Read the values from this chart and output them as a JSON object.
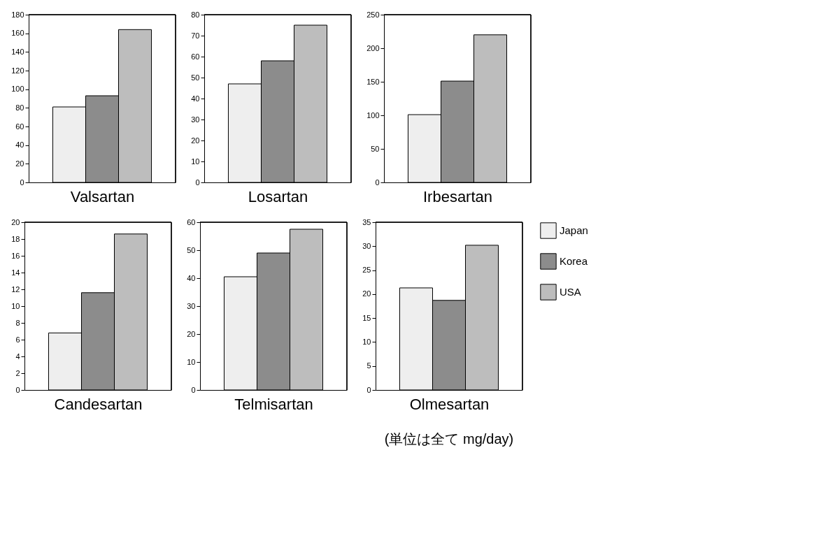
{
  "chart_data": [
    {
      "type": "bar",
      "xlabel": "Valsartan",
      "categories": [
        null
      ],
      "tick_labels": "y",
      "ylim": [
        0,
        180
      ],
      "yticks": [
        0,
        20,
        40,
        60,
        80,
        100,
        120,
        140,
        160,
        180
      ],
      "legend": false,
      "series": [
        {
          "color": "#eeeeee",
          "values": [
            81
          ]
        },
        {
          "color": "#8c8c8c",
          "values": [
            93
          ]
        },
        {
          "color": "#bdbdbd",
          "values": [
            164
          ]
        }
      ]
    },
    {
      "type": "bar",
      "xlabel": "Losartan",
      "categories": [
        null
      ],
      "tick_labels": "y",
      "ylim": [
        0,
        80
      ],
      "yticks": [
        0,
        10,
        20,
        30,
        40,
        50,
        60,
        70,
        80
      ],
      "legend": false,
      "series": [
        {
          "color": "#eeeeee",
          "values": [
            47
          ]
        },
        {
          "color": "#8c8c8c",
          "values": [
            58
          ]
        },
        {
          "color": "#bdbdbd",
          "values": [
            75
          ]
        }
      ]
    },
    {
      "type": "bar",
      "xlabel": "Irbesartan",
      "categories": [
        null
      ],
      "tick_labels": "y",
      "ylim": [
        0,
        250
      ],
      "yticks": [
        0,
        50,
        100,
        150,
        200,
        250
      ],
      "legend": false,
      "series": [
        {
          "color": "#eeeeee",
          "values": [
            101
          ]
        },
        {
          "color": "#8c8c8c",
          "values": [
            151
          ]
        },
        {
          "color": "#bdbdbd",
          "values": [
            220
          ]
        }
      ]
    },
    {
      "type": "bar",
      "xlabel": "Candesartan",
      "categories": [
        null
      ],
      "tick_labels": "y",
      "ylim": [
        0,
        20
      ],
      "yticks": [
        0,
        2,
        4,
        6,
        8,
        10,
        12,
        14,
        16,
        18,
        20
      ],
      "legend": false,
      "series": [
        {
          "color": "#eeeeee",
          "values": [
            6.8
          ]
        },
        {
          "color": "#8c8c8c",
          "values": [
            11.6
          ]
        },
        {
          "color": "#bdbdbd",
          "values": [
            18.6
          ]
        }
      ]
    },
    {
      "type": "bar",
      "xlabel": "Telmisartan",
      "categories": [
        null
      ],
      "tick_labels": "y",
      "ylim": [
        0,
        60
      ],
      "yticks": [
        0,
        10,
        20,
        30,
        40,
        50,
        60
      ],
      "legend": false,
      "series": [
        {
          "color": "#eeeeee",
          "values": [
            40.5
          ]
        },
        {
          "color": "#8c8c8c",
          "values": [
            49
          ]
        },
        {
          "color": "#bdbdbd",
          "values": [
            57.5
          ]
        }
      ]
    },
    {
      "type": "bar",
      "xlabel": "Olmesartan",
      "categories": [
        null
      ],
      "tick_labels": "y",
      "ylim": [
        0,
        35
      ],
      "yticks": [
        0,
        5,
        10,
        15,
        20,
        25,
        30,
        35
      ],
      "legend": "right",
      "annotations": [
        "(単位は全て mg/day)"
      ],
      "series": [
        {
          "name": "Japan",
          "color": "#eeeeee",
          "values": [
            21.3
          ]
        },
        {
          "name": "Korea",
          "color": "#8c8c8c",
          "values": [
            18.7
          ]
        },
        {
          "name": "USA",
          "color": "#bdbdbd",
          "values": [
            30.2
          ]
        }
      ]
    }
  ]
}
